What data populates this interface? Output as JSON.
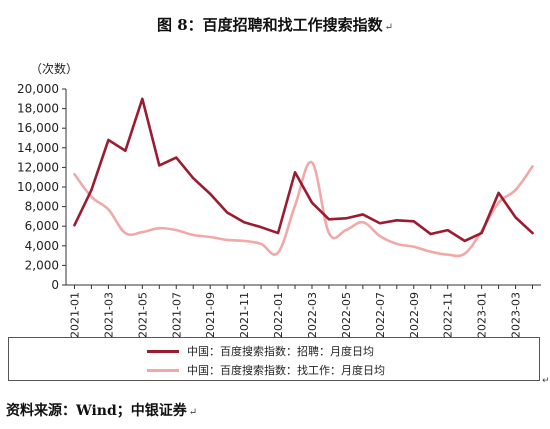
{
  "title": "图 8：百度招聘和找工作搜索指数",
  "title_mark": "↵",
  "source": "资料来源：Wind；中银证券",
  "source_mark": "↵",
  "legend_mark": "↵",
  "chart_data": {
    "type": "line",
    "ylabel": "（次数）",
    "ylim": [
      0,
      20000
    ],
    "yticks": [
      0,
      2000,
      4000,
      6000,
      8000,
      10000,
      12000,
      14000,
      16000,
      18000,
      20000
    ],
    "ytick_labels": [
      "0",
      "2,000",
      "4,000",
      "6,000",
      "8,000",
      "10,000",
      "12,000",
      "14,000",
      "16,000",
      "18,000",
      "20,000"
    ],
    "x": [
      "2021-01",
      "2021-02",
      "2021-03",
      "2021-04",
      "2021-05",
      "2021-06",
      "2021-07",
      "2021-08",
      "2021-09",
      "2021-10",
      "2021-11",
      "2021-12",
      "2022-01",
      "2022-02",
      "2022-03",
      "2022-04",
      "2022-05",
      "2022-06",
      "2022-07",
      "2022-08",
      "2022-09",
      "2022-10",
      "2022-11",
      "2022-12",
      "2023-01",
      "2023-02",
      "2023-03",
      "2023-04"
    ],
    "xtick_labels": [
      "2021-01",
      "2021-03",
      "2021-05",
      "2021-07",
      "2021-09",
      "2021-11",
      "2022-01",
      "2022-03",
      "2022-05",
      "2022-07",
      "2022-09",
      "2022-11",
      "2023-01",
      "2023-03"
    ],
    "grid": false,
    "legend_position": "bottom",
    "series": [
      {
        "name": "中国：百度搜索指数：招聘：月度日均",
        "color": "#9b1b30",
        "smooth": false,
        "values": [
          6100,
          9700,
          14800,
          13700,
          19000,
          12200,
          13000,
          10900,
          9300,
          7400,
          6400,
          5900,
          5300,
          11500,
          8400,
          6700,
          6800,
          7200,
          6300,
          6600,
          6500,
          5200,
          5600,
          4500,
          5300,
          9400,
          6900,
          5300
        ]
      },
      {
        "name": "中国：百度搜索指数：找工作：月度日均",
        "color": "#f0a8a8",
        "smooth": true,
        "values": [
          11300,
          9000,
          7700,
          5300,
          5400,
          5800,
          5600,
          5100,
          4900,
          4600,
          4500,
          4200,
          3300,
          8100,
          12500,
          5300,
          5600,
          6400,
          5000,
          4200,
          3900,
          3400,
          3100,
          3200,
          5500,
          8400,
          9700,
          12100
        ]
      }
    ]
  }
}
